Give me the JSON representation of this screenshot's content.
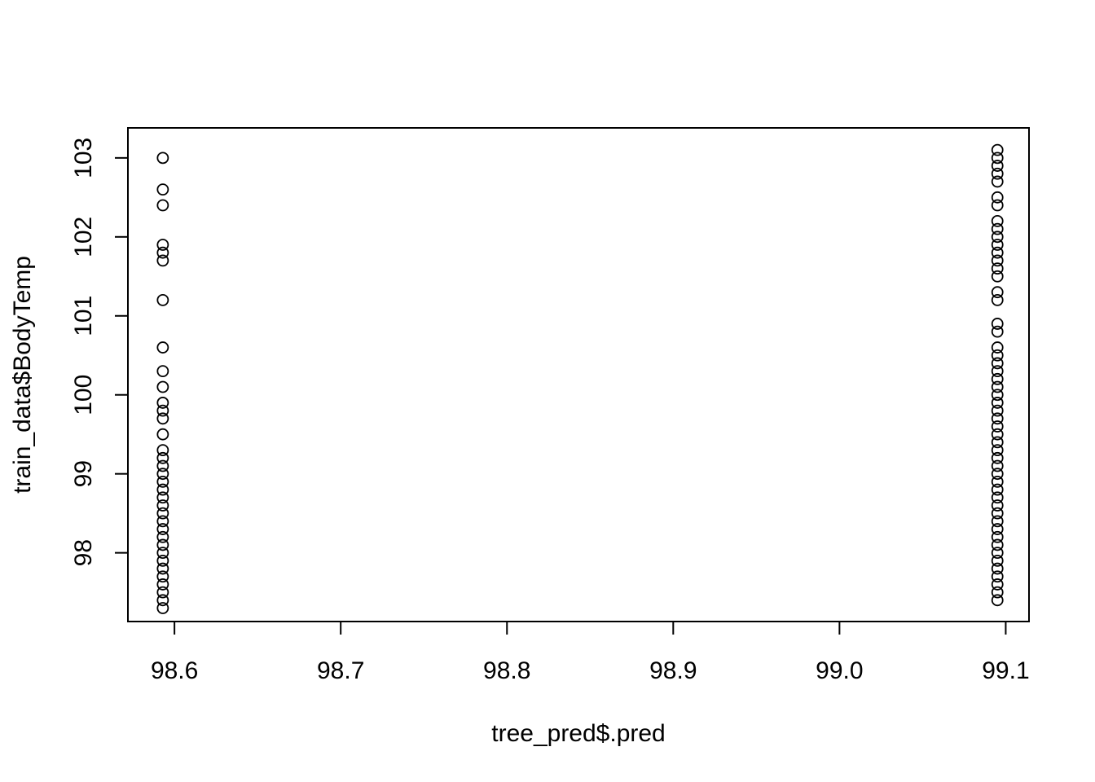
{
  "chart_data": {
    "type": "scatter",
    "title": "",
    "xlabel": "tree_pred$.pred",
    "ylabel": "train_data$BodyTemp",
    "xlim": [
      98.572,
      99.114
    ],
    "ylim": [
      97.13,
      103.38
    ],
    "x_ticks": [
      98.6,
      98.7,
      98.8,
      98.9,
      99.0,
      99.1
    ],
    "x_tick_labels": [
      "98.6",
      "98.7",
      "98.8",
      "98.9",
      "99.0",
      "99.1"
    ],
    "y_ticks": [
      98,
      99,
      100,
      101,
      102,
      103
    ],
    "y_tick_labels": [
      "98",
      "99",
      "100",
      "101",
      "102",
      "103"
    ],
    "grid": false,
    "legend": "none",
    "series": [
      {
        "x": 98.593,
        "y": [
          97.3,
          97.4,
          97.5,
          97.6,
          97.7,
          97.8,
          97.9,
          98.0,
          98.1,
          98.2,
          98.3,
          98.4,
          98.5,
          98.6,
          98.7,
          98.8,
          98.9,
          99.0,
          99.1,
          99.2,
          99.3,
          99.5,
          99.7,
          99.8,
          99.9,
          100.1,
          100.3,
          100.6,
          101.2,
          101.7,
          101.8,
          101.9,
          102.4,
          102.6,
          103.0
        ]
      },
      {
        "x": 99.095,
        "y": [
          97.4,
          97.5,
          97.6,
          97.7,
          97.8,
          97.9,
          98.0,
          98.1,
          98.2,
          98.3,
          98.4,
          98.5,
          98.6,
          98.7,
          98.8,
          98.9,
          99.0,
          99.1,
          99.2,
          99.3,
          99.4,
          99.5,
          99.6,
          99.7,
          99.8,
          99.9,
          100.0,
          100.1,
          100.2,
          100.3,
          100.4,
          100.5,
          100.6,
          100.8,
          100.9,
          101.2,
          101.3,
          101.5,
          101.6,
          101.7,
          101.8,
          101.9,
          102.0,
          102.1,
          102.2,
          102.4,
          102.5,
          102.7,
          102.8,
          102.9,
          103.0,
          103.1
        ]
      }
    ]
  }
}
